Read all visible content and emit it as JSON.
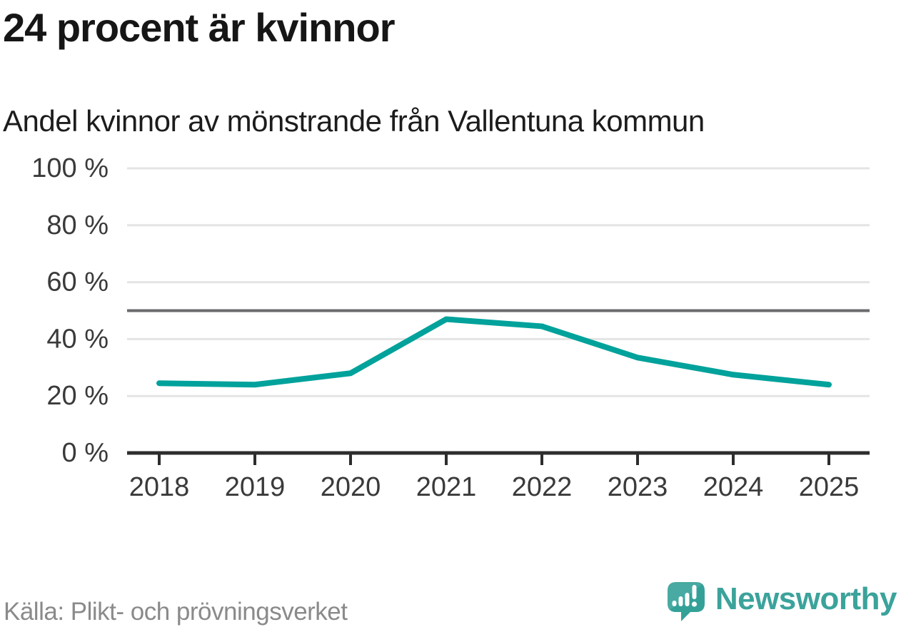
{
  "header": {
    "title": "24 procent är kvinnor",
    "subtitle": "Andel kvinnor av mönstrande från Vallentuna kommun"
  },
  "chart_data": {
    "type": "line",
    "title": "24 procent är kvinnor",
    "subtitle": "Andel kvinnor av mönstrande från Vallentuna kommun",
    "x": [
      2018,
      2019,
      2020,
      2021,
      2022,
      2023,
      2024,
      2025
    ],
    "series": [
      {
        "name": "Andel kvinnor av mönstrande",
        "values": [
          24.5,
          24,
          28,
          47,
          44.5,
          33.5,
          27.5,
          24
        ]
      }
    ],
    "ylim": [
      0,
      100
    ],
    "y_ticks": [
      {
        "value": 0,
        "label": "0 %"
      },
      {
        "value": 20,
        "label": "20 %"
      },
      {
        "value": 40,
        "label": "40 %"
      },
      {
        "value": 60,
        "label": "60 %"
      },
      {
        "value": 80,
        "label": "80 %"
      },
      {
        "value": 100,
        "label": "100 %"
      }
    ],
    "reference_line": 50,
    "grid": true,
    "legend": "none",
    "line_color": "#00a29b",
    "reference_line_color": "#6a6a6e",
    "gridline_color": "#e4e4e4",
    "axis_color": "#2d2d2d"
  },
  "footer": {
    "source": "Källa: Plikt- och prövningsverket",
    "brand": "Newsworthy"
  },
  "colors": {
    "accent_teal": "#00a29b",
    "brand_teal": "#3ba39b",
    "logo_fill": "#34a198",
    "text_dark": "#161616",
    "text_muted": "#8a8a8a"
  }
}
